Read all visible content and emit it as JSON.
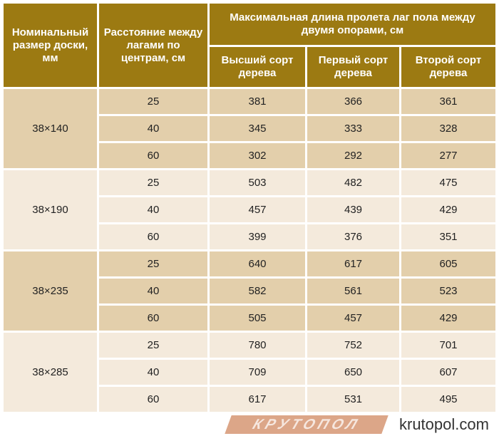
{
  "header": {
    "col_size": "Номинальный размер доски, мм",
    "col_spacing": "Расстояние между лагами по центрам, см",
    "col_span_group": "Максимальная длина пролета лаг пола между двумя опорами, см",
    "grades": [
      "Высший сорт дерева",
      "Первый сорт дерева",
      "Второй сорт дерева"
    ]
  },
  "groups": [
    {
      "size": "38×140",
      "rows": [
        {
          "spacing": "25",
          "values": [
            "381",
            "366",
            "361"
          ]
        },
        {
          "spacing": "40",
          "values": [
            "345",
            "333",
            "328"
          ]
        },
        {
          "spacing": "60",
          "values": [
            "302",
            "292",
            "277"
          ]
        }
      ]
    },
    {
      "size": "38×190",
      "rows": [
        {
          "spacing": "25",
          "values": [
            "503",
            "482",
            "475"
          ]
        },
        {
          "spacing": "40",
          "values": [
            "457",
            "439",
            "429"
          ]
        },
        {
          "spacing": "60",
          "values": [
            "399",
            "376",
            "351"
          ]
        }
      ]
    },
    {
      "size": "38×235",
      "rows": [
        {
          "spacing": "25",
          "values": [
            "640",
            "617",
            "605"
          ]
        },
        {
          "spacing": "40",
          "values": [
            "582",
            "561",
            "523"
          ]
        },
        {
          "spacing": "60",
          "values": [
            "505",
            "457",
            "429"
          ]
        }
      ]
    },
    {
      "size": "38×285",
      "rows": [
        {
          "spacing": "25",
          "values": [
            "780",
            "752",
            "701"
          ]
        },
        {
          "spacing": "40",
          "values": [
            "709",
            "650",
            "607"
          ]
        },
        {
          "spacing": "60",
          "values": [
            "617",
            "531",
            "495"
          ]
        }
      ]
    }
  ],
  "watermark": {
    "logo": "КРУТОПОЛ",
    "text": "krutopol.com"
  },
  "colors": {
    "header": "#9c7a12",
    "row_dark": "#e3cfab",
    "row_light": "#f4eadc"
  }
}
